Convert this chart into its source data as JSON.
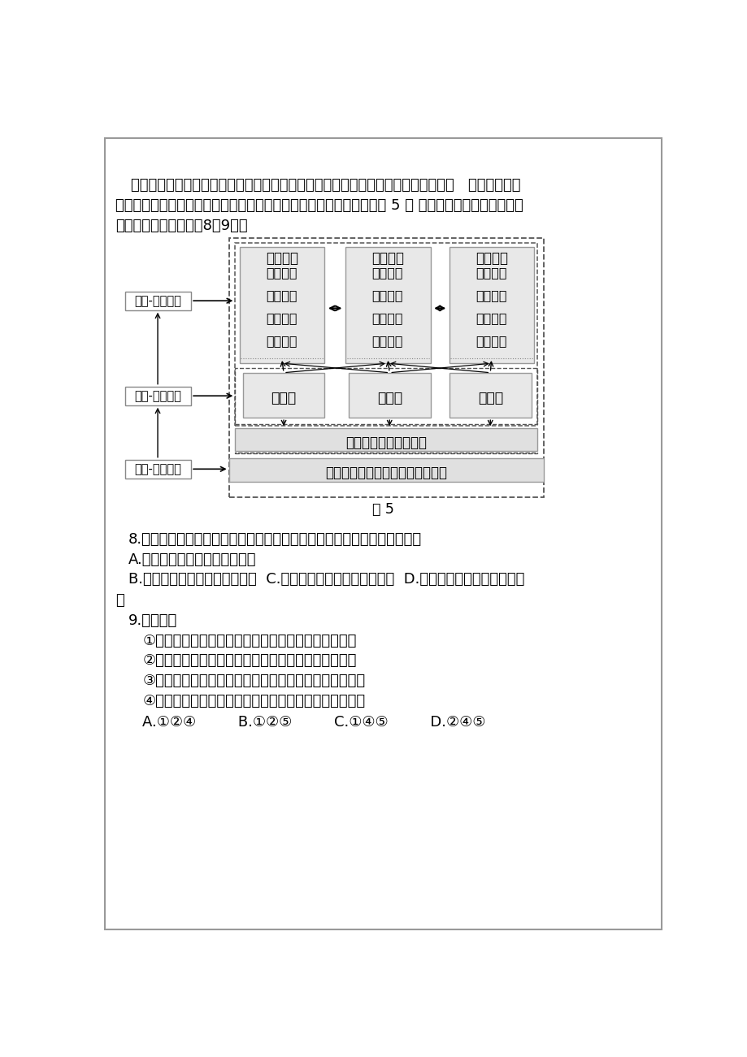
{
  "bg_color": "#ffffff",
  "para_line1": "黄河流域自然生态脆弱，水资源短缺，土地、能源、生物等资源禅赋区域差异明显，   经济社会发展",
  "para_line2": "整体滞后，是我国生态安全保障和经济社会发展的重点和难点地区。图 5 为 黄河流域生态保护和高质量",
  "para_line3": "发展框架图。据此完戁8、9题。",
  "diagram_caption": "图 5",
  "mbox1_title": "措施要点",
  "mbox1_lines": [
    "生态修复",
    "生态保护",
    "退耕减牟",
    "人口流出"
  ],
  "mbox2_title": "措施要点",
  "mbox2_lines": [
    "人口集聚",
    "产业培育",
    "产业升级",
    "产业引进"
  ],
  "mbox3_title": "措施要点",
  "mbox3_lines": [
    "结构调整",
    "农田整治",
    "节水技术",
    "人口流出"
  ],
  "zone1": "生态区",
  "zone2": "城镇区",
  "zone3": "农业区",
  "eval1": "资源环境承载能力评价",
  "eval2": "国土空间开发人类活动适宜性评价",
  "left1": "驱动-内外关联",
  "left2": "承载-发展约束",
  "left3": "基底-生态优先",
  "q8": "8.黄河流域是我国生态安全保障和经济社会发展的重点和难点地区，体现在",
  "q8A": "A.高寒气候为主，环境承载力大",
  "q8B": "B.流经黄土高原，水土流失严重  C.流域内降水量丰富，水运发达  D.流域自然资源贫乏，多贫困",
  "q8B2": "区",
  "q9": "9.黄河流域",
  "q9_1": "①协调发展的基础是区域自然生态条件和资源环境条件",
  "q9_2": "②城镇区通过产业结构转型、升级，带动区域经济增长",
  "q9_3": "③农业区加强农田整治，修建黌坡梯田，提高粮食总产量",
  "q9_4": "④加强生态区及深度贫困区生态建设，促进区域协调发展",
  "q9_ans": "A.①②④         B.①②⑤         C.①④⑤         D.②④⑤"
}
